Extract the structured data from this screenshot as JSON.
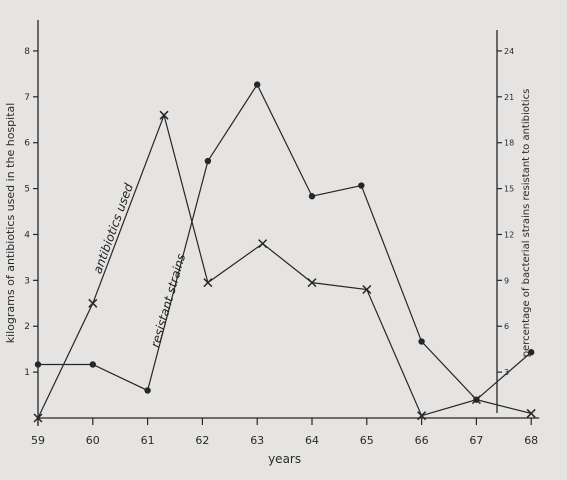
{
  "chart_data": {
    "type": "line",
    "xlabel": "years",
    "ylabel": "kilograms of antibiotics used in the hospital",
    "y2label": "percentage of bacterial strains resistant to antibiotics",
    "categories": [
      "59",
      "60",
      "61",
      "62",
      "63",
      "64",
      "65",
      "66",
      "67",
      "68"
    ],
    "x": [
      59,
      60,
      61,
      61.3,
      62,
      63,
      64,
      65,
      66,
      67,
      68
    ],
    "ylim": [
      0,
      8.5
    ],
    "y2lim": [
      0,
      25.5
    ],
    "yticks": [
      1,
      2,
      3,
      4,
      5,
      6,
      7,
      8
    ],
    "y2ticks": [
      3,
      6,
      9,
      12,
      15,
      18,
      21,
      24
    ],
    "grid": false,
    "legend": "none",
    "series": [
      {
        "name": "antibiotics used",
        "axis": "left",
        "marker": "x",
        "points": [
          [
            59,
            0
          ],
          [
            60,
            2.5
          ],
          [
            61.3,
            6.6
          ],
          [
            62.1,
            2.95
          ],
          [
            63.1,
            3.8
          ],
          [
            64,
            2.95
          ],
          [
            65,
            2.8
          ],
          [
            66,
            0.05
          ],
          [
            67,
            0.4
          ],
          [
            68,
            0.1
          ]
        ]
      },
      {
        "name": "resistant strains",
        "axis": "right",
        "marker": "dot",
        "points": [
          [
            59,
            3.5
          ],
          [
            60,
            3.5
          ],
          [
            61,
            1.8
          ],
          [
            62.1,
            16.8
          ],
          [
            63,
            21.8
          ],
          [
            64,
            14.5
          ],
          [
            64.9,
            15.2
          ],
          [
            66,
            5.0
          ],
          [
            67,
            1.2
          ],
          [
            68,
            4.3
          ]
        ]
      }
    ],
    "annotations": [
      {
        "text": "antibiotics used",
        "series": "antibiotics used"
      },
      {
        "text": "resistant  strains",
        "series": "resistant strains"
      }
    ]
  }
}
